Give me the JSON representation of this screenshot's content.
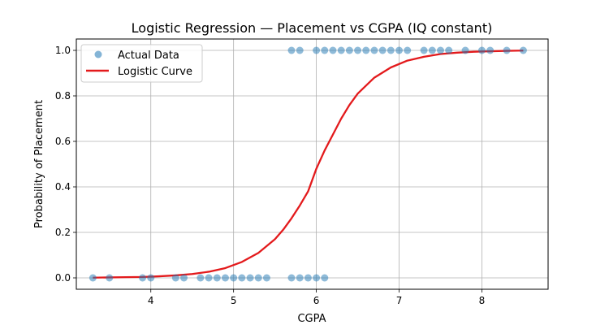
{
  "chart_data": {
    "type": "scatter",
    "title": "Logistic Regression — Placement vs CGPA (IQ constant)",
    "xlabel": "CGPA",
    "ylabel": "Probability of Placement",
    "xlim": [
      3.1,
      8.8
    ],
    "ylim": [
      -0.05,
      1.05
    ],
    "x_ticks": [
      "4",
      "5",
      "6",
      "7",
      "8"
    ],
    "y_ticks": [
      "0.0",
      "0.2",
      "0.4",
      "0.6",
      "0.8",
      "1.0"
    ],
    "grid": true,
    "legend_position": "top-left",
    "series": [
      {
        "name": "Actual Data",
        "kind": "scatter",
        "color": "#1f77b4",
        "points": [
          [
            3.3,
            0
          ],
          [
            3.5,
            0
          ],
          [
            3.9,
            0
          ],
          [
            4.0,
            0
          ],
          [
            4.3,
            0
          ],
          [
            4.4,
            0
          ],
          [
            4.6,
            0
          ],
          [
            4.7,
            0
          ],
          [
            4.8,
            0
          ],
          [
            4.9,
            0
          ],
          [
            5.0,
            0
          ],
          [
            5.1,
            0
          ],
          [
            5.2,
            0
          ],
          [
            5.3,
            0
          ],
          [
            5.4,
            0
          ],
          [
            5.7,
            0
          ],
          [
            5.8,
            0
          ],
          [
            5.9,
            0
          ],
          [
            6.0,
            0
          ],
          [
            6.1,
            0
          ],
          [
            5.7,
            1
          ],
          [
            5.8,
            1
          ],
          [
            6.0,
            1
          ],
          [
            6.1,
            1
          ],
          [
            6.2,
            1
          ],
          [
            6.3,
            1
          ],
          [
            6.4,
            1
          ],
          [
            6.5,
            1
          ],
          [
            6.6,
            1
          ],
          [
            6.7,
            1
          ],
          [
            6.8,
            1
          ],
          [
            6.9,
            1
          ],
          [
            7.0,
            1
          ],
          [
            7.1,
            1
          ],
          [
            7.3,
            1
          ],
          [
            7.4,
            1
          ],
          [
            7.5,
            1
          ],
          [
            7.6,
            1
          ],
          [
            7.8,
            1
          ],
          [
            8.0,
            1
          ],
          [
            8.1,
            1
          ],
          [
            8.3,
            1
          ],
          [
            8.5,
            1
          ]
        ]
      },
      {
        "name": "Logistic Curve",
        "kind": "line",
        "color": "#e31a1c",
        "x": [
          3.3,
          3.5,
          3.7,
          3.9,
          4.1,
          4.3,
          4.5,
          4.7,
          4.9,
          5.1,
          5.3,
          5.5,
          5.6,
          5.7,
          5.8,
          5.9,
          6.0,
          6.1,
          6.2,
          6.3,
          6.4,
          6.5,
          6.7,
          6.9,
          7.1,
          7.3,
          7.5,
          7.7,
          7.9,
          8.1,
          8.3,
          8.5
        ],
        "y": [
          0.001,
          0.002,
          0.003,
          0.004,
          0.007,
          0.011,
          0.017,
          0.027,
          0.043,
          0.07,
          0.11,
          0.17,
          0.212,
          0.262,
          0.318,
          0.38,
          0.48,
          0.56,
          0.63,
          0.7,
          0.76,
          0.81,
          0.88,
          0.925,
          0.955,
          0.972,
          0.984,
          0.99,
          0.994,
          0.996,
          0.998,
          0.999
        ]
      }
    ]
  }
}
